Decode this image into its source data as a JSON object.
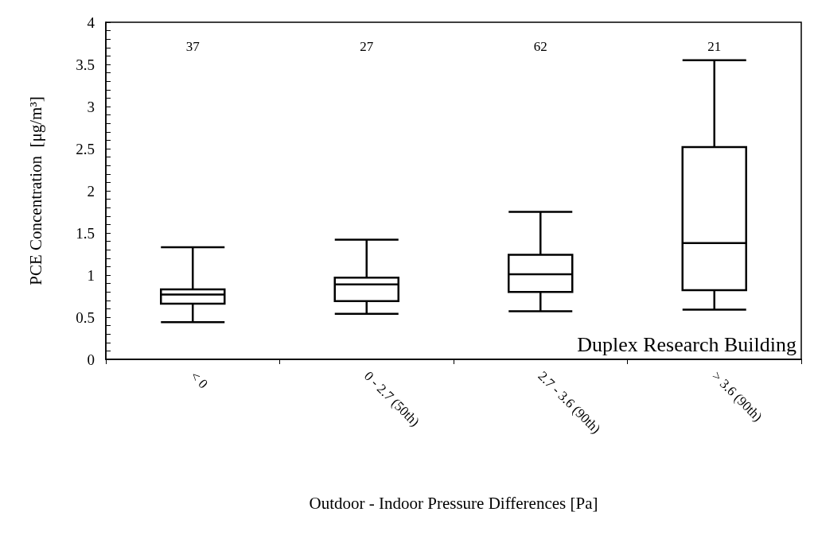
{
  "chart_data": {
    "type": "box",
    "xlabel": "Outdoor - Indoor Pressure Differences [Pa]",
    "ylabel": "PCE Concentration  [μg/m³]",
    "categories": [
      "< 0",
      "0 - 2.7 (50th)",
      "2.7 - 3.6 (90th)",
      "> 3.6 (90th)"
    ],
    "boxes": [
      {
        "low": 0.44,
        "q1": 0.66,
        "median": 0.77,
        "q3": 0.83,
        "high": 1.33
      },
      {
        "low": 0.54,
        "q1": 0.69,
        "median": 0.89,
        "q3": 0.97,
        "high": 1.42
      },
      {
        "low": 0.57,
        "q1": 0.8,
        "median": 1.01,
        "q3": 1.24,
        "high": 1.75
      },
      {
        "low": 0.59,
        "q1": 0.82,
        "median": 1.38,
        "q3": 2.52,
        "high": 3.55
      }
    ],
    "color": "#000000",
    "ylim": [
      0,
      4
    ],
    "yticks": [
      0,
      {
        "value": 0.1,
        "label": null
      },
      {
        "value": 0.2,
        "label": null
      },
      {
        "value": 0.3,
        "label": null
      },
      {
        "value": 0.4,
        "label": null
      },
      0.5,
      {
        "value": 0.6,
        "label": null
      },
      {
        "value": 0.7,
        "label": null
      },
      {
        "value": 0.8,
        "label": null
      },
      {
        "value": 0.9,
        "label": null
      },
      1,
      {
        "value": 1.1,
        "label": null
      },
      {
        "value": 1.2,
        "label": null
      },
      {
        "value": 1.3,
        "label": null
      },
      {
        "value": 1.4,
        "label": null
      },
      1.5,
      {
        "value": 1.6,
        "label": null
      },
      {
        "value": 1.7,
        "label": null
      },
      {
        "value": 1.8,
        "label": null
      },
      {
        "value": 1.9,
        "label": null
      },
      2,
      {
        "value": 2.1,
        "label": null
      },
      {
        "value": 2.2,
        "label": null
      },
      {
        "value": 2.3,
        "label": null
      },
      {
        "value": 2.4,
        "label": null
      },
      2.5,
      {
        "value": 2.6,
        "label": null
      },
      {
        "value": 2.7,
        "label": null
      },
      {
        "value": 2.8,
        "label": null
      },
      {
        "value": 2.9,
        "label": null
      },
      3,
      {
        "value": 3.1,
        "label": null
      },
      {
        "value": 3.2,
        "label": null
      },
      {
        "value": 3.3,
        "label": null
      },
      {
        "value": 3.4,
        "label": null
      },
      3.5,
      {
        "value": 3.6,
        "label": null
      },
      {
        "value": 3.7,
        "label": null
      },
      {
        "value": 3.8,
        "label": null
      },
      {
        "value": 3.9,
        "label": null
      },
      4
    ],
    "grid": false,
    "annotations": [
      "37",
      "27",
      "62",
      "21",
      "Duplex Research Building"
    ]
  }
}
